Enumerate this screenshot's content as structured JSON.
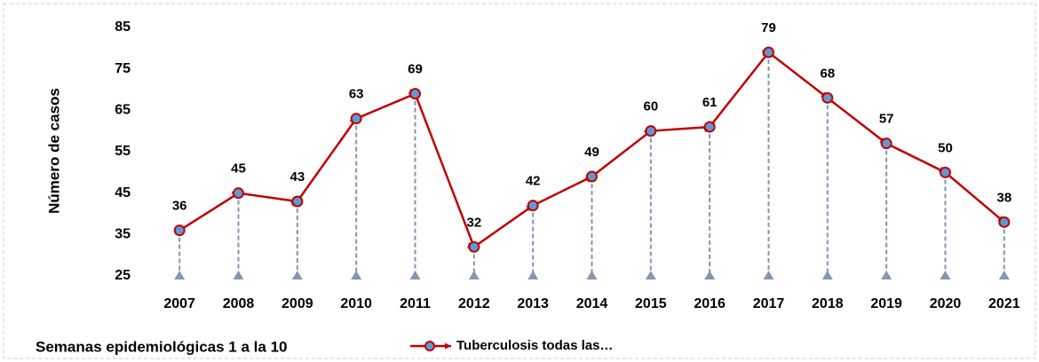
{
  "chart_data": {
    "type": "line",
    "y_label": "Número de casos",
    "annotation": "Semanas epidemiológicas 1 a la 10",
    "categories": [
      "2007",
      "2008",
      "2009",
      "2010",
      "2011",
      "2012",
      "2013",
      "2014",
      "2015",
      "2016",
      "2017",
      "2018",
      "2019",
      "2020",
      "2021"
    ],
    "series": [
      {
        "name": "Tuberculosis todas las…",
        "color": "#c00000",
        "marker_color": "#5b9bd5",
        "values": [
          36,
          45,
          43,
          63,
          69,
          32,
          42,
          49,
          60,
          61,
          79,
          68,
          57,
          50,
          38
        ]
      }
    ],
    "ylim": [
      25,
      85
    ],
    "yticks": [
      25,
      35,
      45,
      55,
      65,
      75,
      85
    ],
    "grid": false,
    "drop_lines": true
  }
}
